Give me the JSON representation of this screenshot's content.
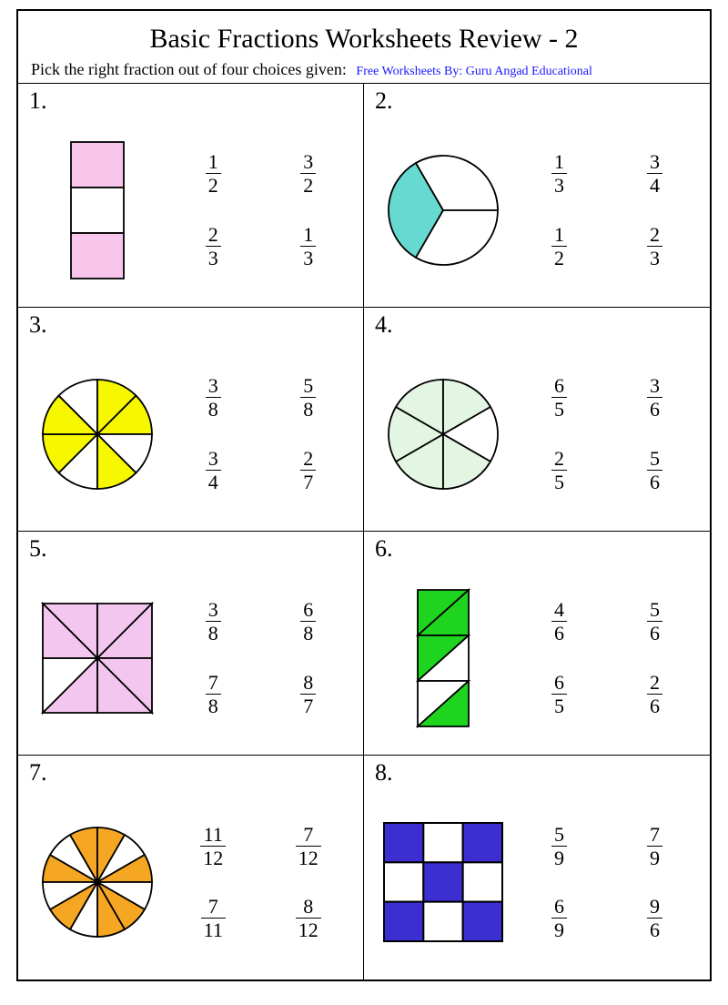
{
  "title": "Basic Fractions Worksheets Review - 2",
  "subtitle": "Pick the right fraction out of four choices given:",
  "byline": "Free Worksheets By: Guru Angad Educational",
  "colors": {
    "stroke": "#000000",
    "bg": "#ffffff"
  },
  "problems": [
    {
      "num": "1.",
      "choices": [
        {
          "n": "1",
          "d": "2"
        },
        {
          "n": "3",
          "d": "2"
        },
        {
          "n": "2",
          "d": "3"
        },
        {
          "n": "1",
          "d": "3"
        }
      ],
      "shape": {
        "type": "rect3",
        "fill": "#f7c6ea",
        "segments": [
          true,
          false,
          true
        ]
      }
    },
    {
      "num": "2.",
      "choices": [
        {
          "n": "1",
          "d": "3"
        },
        {
          "n": "3",
          "d": "4"
        },
        {
          "n": "1",
          "d": "2"
        },
        {
          "n": "2",
          "d": "3"
        }
      ],
      "shape": {
        "type": "pie",
        "slices": 3,
        "start": -150,
        "fill": "#66d9d0",
        "filled": [
          true,
          false,
          false
        ]
      }
    },
    {
      "num": "3.",
      "choices": [
        {
          "n": "3",
          "d": "8"
        },
        {
          "n": "5",
          "d": "8"
        },
        {
          "n": "3",
          "d": "4"
        },
        {
          "n": "2",
          "d": "7"
        }
      ],
      "shape": {
        "type": "pie",
        "slices": 8,
        "start": -180,
        "fill": "#f7f700",
        "filled": [
          false,
          true,
          true,
          false,
          true,
          true,
          false,
          true
        ]
      }
    },
    {
      "num": "4.",
      "choices": [
        {
          "n": "6",
          "d": "5"
        },
        {
          "n": "3",
          "d": "6"
        },
        {
          "n": "2",
          "d": "5"
        },
        {
          "n": "5",
          "d": "6"
        }
      ],
      "shape": {
        "type": "pie",
        "slices": 6,
        "start": -180,
        "fill": "#e3f5e3",
        "filled": [
          true,
          true,
          true,
          true,
          false,
          true
        ]
      }
    },
    {
      "num": "5.",
      "choices": [
        {
          "n": "3",
          "d": "8"
        },
        {
          "n": "6",
          "d": "8"
        },
        {
          "n": "7",
          "d": "8"
        },
        {
          "n": "8",
          "d": "7"
        }
      ],
      "shape": {
        "type": "square8",
        "fill": "#f2c6ef",
        "filled": [
          true,
          true,
          true,
          true,
          true,
          true,
          false,
          true
        ]
      }
    },
    {
      "num": "6.",
      "choices": [
        {
          "n": "4",
          "d": "6"
        },
        {
          "n": "5",
          "d": "6"
        },
        {
          "n": "6",
          "d": "5"
        },
        {
          "n": "2",
          "d": "6"
        }
      ],
      "shape": {
        "type": "tri6",
        "fill": "#1fd41f",
        "filled": [
          true,
          true,
          true,
          false,
          false,
          true
        ]
      }
    },
    {
      "num": "7.",
      "choices": [
        {
          "n": "11",
          "d": "12"
        },
        {
          "n": "7",
          "d": "12"
        },
        {
          "n": "7",
          "d": "11"
        },
        {
          "n": "8",
          "d": "12"
        }
      ],
      "shape": {
        "type": "pie",
        "slices": 12,
        "start": -90,
        "fill": "#f5a623",
        "filled": [
          true,
          false,
          true,
          true,
          false,
          true,
          false,
          true,
          true,
          false,
          true,
          false
        ]
      }
    },
    {
      "num": "8.",
      "choices": [
        {
          "n": "5",
          "d": "9"
        },
        {
          "n": "7",
          "d": "9"
        },
        {
          "n": "6",
          "d": "9"
        },
        {
          "n": "9",
          "d": "6"
        }
      ],
      "shape": {
        "type": "grid9",
        "fill": "#3c2fd1",
        "filled": [
          true,
          false,
          true,
          false,
          true,
          false,
          true,
          false,
          true
        ]
      }
    }
  ]
}
